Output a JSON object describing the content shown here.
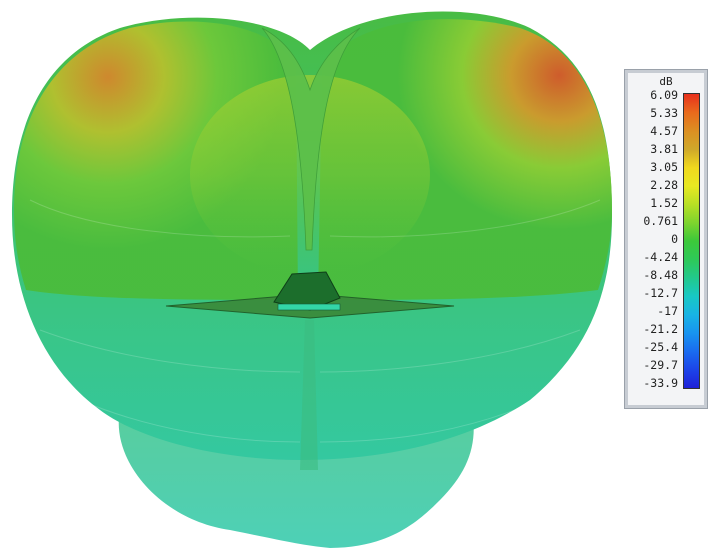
{
  "legend": {
    "unit": "dB",
    "ticks": [
      "6.09",
      "5.33",
      "4.57",
      "3.81",
      "3.05",
      "2.28",
      "1.52",
      "0.761",
      "0",
      "-4.24",
      "-8.48",
      "-12.7",
      "-17",
      "-21.2",
      "-25.4",
      "-29.7",
      "-33.9"
    ],
    "colors": [
      "#e8301c",
      "#e96a1c",
      "#dc8f22",
      "#cfa82a",
      "#f0d81e",
      "#e8e822",
      "#b8e024",
      "#7ed42e",
      "#3cc83a",
      "#2ec858",
      "#22c88c",
      "#18c8c4",
      "#18b4e4",
      "#1894f0",
      "#1a6cf0",
      "#1c44e8",
      "#1e20d8"
    ]
  },
  "pattern": {
    "colors": {
      "green": "#4ec03a",
      "yellow_green": "#b4d432",
      "orange": "#d4862c",
      "teal": "#38c896"
    }
  }
}
